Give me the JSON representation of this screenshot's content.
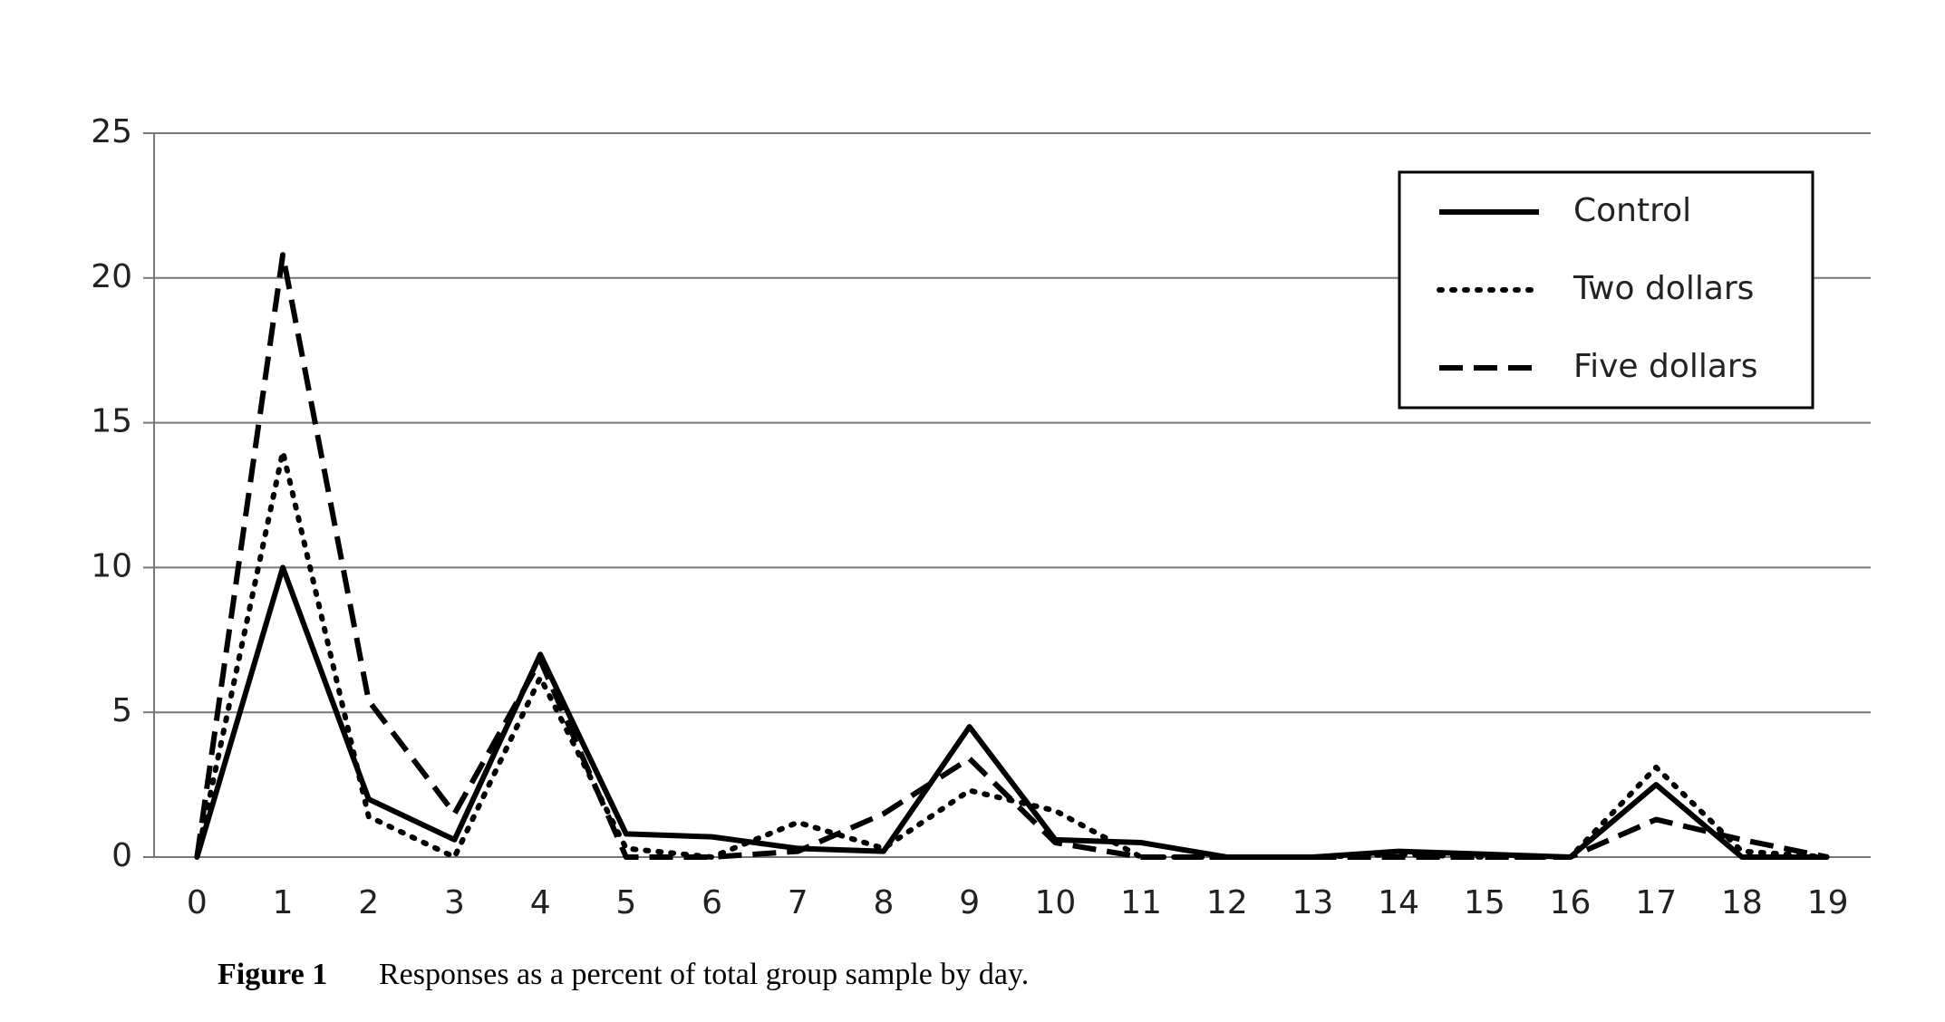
{
  "chart_data": {
    "type": "line",
    "x": [
      0,
      1,
      2,
      3,
      4,
      5,
      6,
      7,
      8,
      9,
      10,
      11,
      12,
      13,
      14,
      15,
      16,
      17,
      18,
      19
    ],
    "xlim": [
      -0.5,
      19.5
    ],
    "xticks": [
      0,
      1,
      2,
      3,
      4,
      5,
      6,
      7,
      8,
      9,
      10,
      11,
      12,
      13,
      14,
      15,
      16,
      17,
      18,
      19
    ],
    "ylim": [
      0,
      25
    ],
    "yticks": [
      0,
      5,
      10,
      15,
      20,
      25
    ],
    "grid": true,
    "legend": "upper right",
    "series": [
      {
        "name": "Control",
        "color": "#000000",
        "style": "solid",
        "values": [
          0,
          10,
          2,
          0.6,
          7,
          0.8,
          0.7,
          0.3,
          0.2,
          4.5,
          0.6,
          0.5,
          0,
          0,
          0.2,
          0.1,
          0,
          2.5,
          0,
          0
        ]
      },
      {
        "name": "Two dollars",
        "color": "#000000",
        "style": "dotted",
        "values": [
          0,
          14,
          1.4,
          0,
          6.2,
          0.3,
          0,
          1.2,
          0.3,
          2.3,
          1.6,
          0,
          0,
          0,
          0.1,
          0,
          0,
          3.1,
          0.2,
          0
        ]
      },
      {
        "name": "Five dollars",
        "color": "#000000",
        "style": "dashed",
        "values": [
          0,
          20.8,
          5.4,
          1.5,
          6.8,
          0,
          0,
          0.2,
          1.5,
          3.4,
          0.5,
          0,
          0,
          0,
          0,
          0,
          0,
          1.3,
          0.6,
          0
        ]
      }
    ],
    "caption_label": "Figure 1",
    "caption": "Responses as a percent of total group sample by day."
  }
}
